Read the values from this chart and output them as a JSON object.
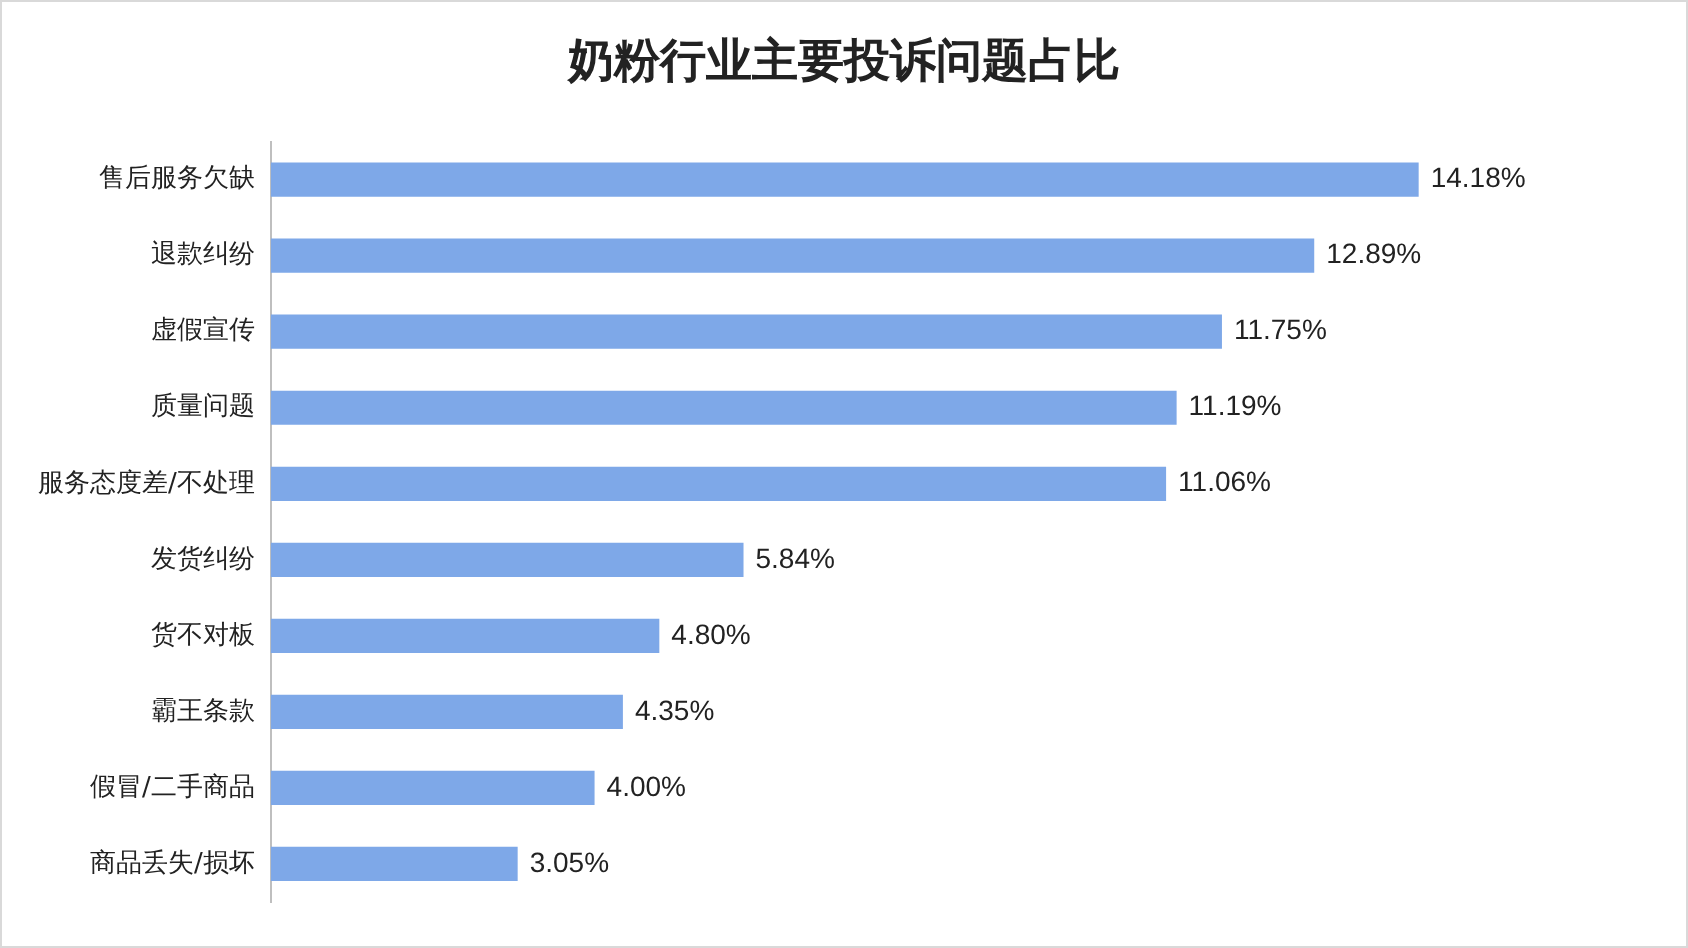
{
  "chart_data": {
    "type": "bar",
    "orientation": "horizontal",
    "title": "奶粉行业主要投诉问题占比",
    "categories": [
      "售后服务欠缺",
      "退款纠纷",
      "虚假宣传",
      "质量问题",
      "服务态度差/不处理",
      "发货纠纷",
      "货不对板",
      "霸王条款",
      "假冒/二手商品",
      "商品丢失/损坏"
    ],
    "values": [
      14.18,
      12.89,
      11.75,
      11.19,
      11.06,
      5.84,
      4.8,
      4.35,
      4.0,
      3.05
    ],
    "value_labels": [
      "14.18%",
      "12.89%",
      "11.75%",
      "11.19%",
      "11.06%",
      "5.84%",
      "4.80%",
      "4.35%",
      "4.00%",
      "3.05%"
    ],
    "color": "#7ea8e8",
    "grid": false,
    "legend": false,
    "tick_labels": "y"
  }
}
